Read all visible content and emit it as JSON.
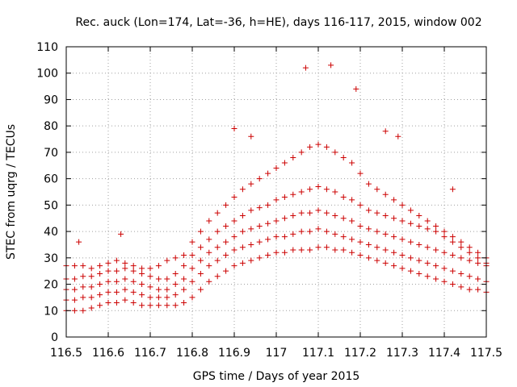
{
  "chart_data": {
    "type": "scatter",
    "title": "Rec. auck (Lon=174, Lat=-36, h=HE), days 116-117, 2015, window 002",
    "xlabel": "GPS time / Days of year 2015",
    "ylabel": "STEC from uqrg / TECUs",
    "xlim": [
      116.5,
      117.5
    ],
    "ylim": [
      0,
      110
    ],
    "xticks": [
      "116.5",
      "116.6",
      "116.7",
      "116.8",
      "116.9",
      "117",
      "117.1",
      "117.2",
      "117.3",
      "117.4",
      "117.5"
    ],
    "yticks": [
      "0",
      "10",
      "20",
      "30",
      "40",
      "50",
      "60",
      "70",
      "80",
      "90",
      "100",
      "110"
    ],
    "grid": true,
    "marker": "plus",
    "color": "#cc0000",
    "series": [
      {
        "x": [
          116.5,
          116.52,
          116.54,
          116.56,
          116.58,
          116.6,
          116.62,
          116.64,
          116.66,
          116.68,
          116.7,
          116.72,
          116.74,
          116.76,
          116.78,
          116.8,
          116.82,
          116.84,
          116.86,
          116.88,
          116.9,
          116.92,
          116.94,
          116.96,
          116.98,
          117.0,
          117.02,
          117.04,
          117.06,
          117.08,
          117.1,
          117.12,
          117.14,
          117.16,
          117.18,
          117.2,
          117.22,
          117.24,
          117.26,
          117.28,
          117.3,
          117.32,
          117.34,
          117.36,
          117.38,
          117.4,
          117.42,
          117.44,
          117.46,
          117.48,
          117.5
        ],
        "y": [
          10,
          10,
          10,
          11,
          12,
          13,
          13,
          14,
          13,
          12,
          12,
          12,
          12,
          12,
          13,
          15,
          18,
          21,
          23,
          25,
          27,
          28,
          29,
          30,
          31,
          32,
          32,
          33,
          33,
          33,
          34,
          34,
          33,
          33,
          32,
          31,
          30,
          29,
          28,
          27,
          26,
          25,
          24,
          23,
          22,
          21,
          20,
          19,
          18,
          18,
          17
        ]
      },
      {
        "x": [
          116.5,
          116.52,
          116.54,
          116.56,
          116.58,
          116.6,
          116.62,
          116.64,
          116.66,
          116.68,
          116.7,
          116.72,
          116.74,
          116.76,
          116.78,
          116.8,
          116.82,
          116.84,
          116.86,
          116.88,
          116.9,
          116.92,
          116.94,
          116.96,
          116.98,
          117.0,
          117.02,
          117.04,
          117.06,
          117.08,
          117.1,
          117.12,
          117.14,
          117.16,
          117.18,
          117.2,
          117.22,
          117.24,
          117.26,
          117.28,
          117.3,
          117.32,
          117.34,
          117.36,
          117.38,
          117.4,
          117.42,
          117.44,
          117.46,
          117.48,
          117.5
        ],
        "y": [
          14,
          14,
          15,
          15,
          16,
          17,
          17,
          18,
          17,
          16,
          15,
          15,
          15,
          16,
          18,
          21,
          24,
          27,
          29,
          31,
          33,
          34,
          35,
          36,
          37,
          38,
          38,
          39,
          40,
          40,
          41,
          40,
          39,
          38,
          37,
          36,
          35,
          34,
          33,
          32,
          31,
          30,
          29,
          28,
          27,
          26,
          25,
          24,
          23,
          22,
          21
        ]
      },
      {
        "x": [
          116.5,
          116.52,
          116.54,
          116.56,
          116.58,
          116.6,
          116.62,
          116.64,
          116.66,
          116.68,
          116.7,
          116.72,
          116.74,
          116.76,
          116.78,
          116.8,
          116.82,
          116.84,
          116.86,
          116.88,
          116.9,
          116.92,
          116.94,
          116.96,
          116.98,
          117.0,
          117.02,
          117.04,
          117.06,
          117.08,
          117.1,
          117.12,
          117.14,
          117.16,
          117.18,
          117.2,
          117.22,
          117.24,
          117.26,
          117.28,
          117.3,
          117.32,
          117.34,
          117.36,
          117.38,
          117.4,
          117.42,
          117.44,
          117.46,
          117.48,
          117.5
        ],
        "y": [
          18,
          18,
          19,
          19,
          20,
          21,
          21,
          22,
          21,
          20,
          19,
          18,
          18,
          20,
          22,
          26,
          29,
          32,
          34,
          36,
          38,
          40,
          41,
          42,
          43,
          44,
          45,
          46,
          47,
          47,
          48,
          47,
          46,
          45,
          44,
          42,
          41,
          40,
          39,
          38,
          37,
          36,
          35,
          34,
          33,
          32,
          31,
          30,
          29,
          28,
          27
        ]
      },
      {
        "x": [
          116.5,
          116.52,
          116.54,
          116.56,
          116.58,
          116.6,
          116.62,
          116.64,
          116.66,
          116.68,
          116.7,
          116.72,
          116.74,
          116.76,
          116.78,
          116.8,
          116.82,
          116.84,
          116.86,
          116.88,
          116.9,
          116.92,
          116.94,
          116.96,
          116.98,
          117.0,
          117.02,
          117.04,
          117.06,
          117.08,
          117.1,
          117.12,
          117.14,
          117.16,
          117.18,
          117.2,
          117.22,
          117.24,
          117.26,
          117.28,
          117.3,
          117.32,
          117.34,
          117.36,
          117.38,
          117.4,
          117.42,
          117.44,
          117.46,
          117.48,
          117.5
        ],
        "y": [
          22,
          22,
          23,
          23,
          24,
          25,
          25,
          26,
          25,
          24,
          23,
          22,
          22,
          24,
          27,
          31,
          34,
          37,
          40,
          42,
          44,
          46,
          48,
          49,
          50,
          52,
          53,
          54,
          55,
          56,
          57,
          56,
          55,
          53,
          52,
          50,
          48,
          47,
          46,
          45,
          44,
          43,
          42,
          41,
          40,
          38,
          36,
          34,
          32,
          30,
          28
        ]
      },
      {
        "x": [
          116.5,
          116.52,
          116.54,
          116.56,
          116.58,
          116.6,
          116.62,
          116.64,
          116.66,
          116.68,
          116.7,
          116.72,
          116.74,
          116.76,
          116.78,
          116.8,
          116.82,
          116.84,
          116.86,
          116.88,
          116.9,
          116.92,
          116.94,
          116.96,
          116.98,
          117.0,
          117.02,
          117.04,
          117.06,
          117.08,
          117.1,
          117.12,
          117.14,
          117.16,
          117.18,
          117.2,
          117.22,
          117.24,
          117.26,
          117.28,
          117.3,
          117.32,
          117.34,
          117.36,
          117.38,
          117.4,
          117.42,
          117.44,
          117.46,
          117.48,
          117.5
        ],
        "y": [
          27,
          27,
          27,
          26,
          27,
          28,
          29,
          28,
          27,
          26,
          26,
          27,
          29,
          30,
          31,
          36,
          40,
          44,
          47,
          50,
          53,
          56,
          58,
          60,
          62,
          64,
          66,
          68,
          70,
          72,
          73,
          72,
          70,
          68,
          66,
          62,
          58,
          56,
          54,
          52,
          50,
          48,
          46,
          44,
          42,
          40,
          38,
          36,
          34,
          32,
          30
        ]
      }
    ],
    "outliers": {
      "x": [
        116.53,
        116.63,
        116.9,
        116.94,
        117.07,
        117.13,
        117.19,
        117.26,
        117.29,
        117.42
      ],
      "y": [
        36,
        39,
        79,
        76,
        102,
        103,
        94,
        78,
        76,
        56
      ]
    }
  }
}
